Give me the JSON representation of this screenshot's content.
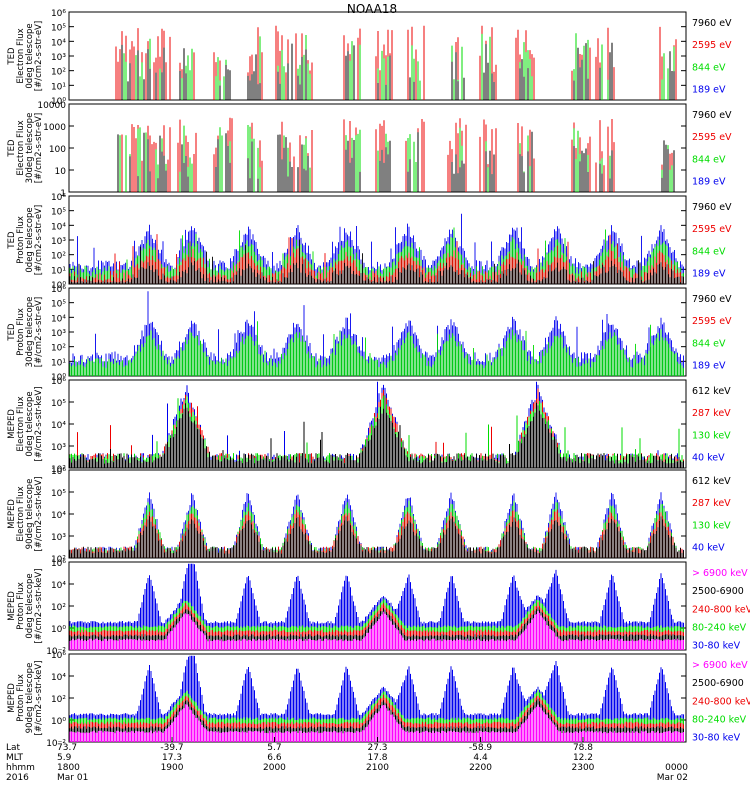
{
  "title": "NOAA18",
  "colors": {
    "blue": "#0000ee",
    "red": "#ee0000",
    "green": "#00dd00",
    "black": "#000000",
    "magenta": "#ff00ff",
    "axis": "#000000"
  },
  "chart_data": [
    {
      "type": "line",
      "ylabel": [
        "TED",
        "Electron Flux",
        "0deg telescope",
        "[#/cm2-s-str-eV]"
      ],
      "yticks": [
        "10⁰",
        "10¹",
        "10²",
        "10³",
        "10⁴",
        "10⁵",
        "10⁶"
      ],
      "ylim_log": [
        0,
        6
      ],
      "legend": [
        {
          "label": "7960 eV",
          "color": "black"
        },
        {
          "label": "2595 eV",
          "color": "red"
        },
        {
          "label": "844 eV",
          "color": "green"
        },
        {
          "label": "189 eV",
          "color": "blue"
        }
      ],
      "activity": "bursts",
      "active_series": [
        "red",
        "green",
        "black"
      ]
    },
    {
      "type": "line",
      "ylabel": [
        "TED",
        "Electron Flux",
        "30deg telescope",
        "[#/cm2-s-str-eV]"
      ],
      "yticks": [
        "1",
        "10",
        "100",
        "1000",
        "10000"
      ],
      "ylim_log": [
        0,
        4
      ],
      "legend": [
        {
          "label": "7960 eV",
          "color": "black"
        },
        {
          "label": "2595 eV",
          "color": "red"
        },
        {
          "label": "844 eV",
          "color": "green"
        },
        {
          "label": "189 eV",
          "color": "blue"
        }
      ],
      "activity": "bursts",
      "active_series": [
        "red",
        "green",
        "black"
      ]
    },
    {
      "type": "line",
      "ylabel": [
        "TED",
        "Proton Flux",
        "0deg telescope",
        "[#/cm2-s-str-eV]"
      ],
      "yticks": [
        "10⁰",
        "10¹",
        "10²",
        "10³",
        "10⁴",
        "10⁵",
        "10⁶"
      ],
      "ylim_log": [
        0,
        6
      ],
      "legend": [
        {
          "label": "7960 eV",
          "color": "black"
        },
        {
          "label": "2595 eV",
          "color": "red"
        },
        {
          "label": "844 eV",
          "color": "green"
        },
        {
          "label": "189 eV",
          "color": "blue"
        }
      ],
      "activity": "continuous",
      "active_series": [
        "blue",
        "green",
        "red",
        "black"
      ]
    },
    {
      "type": "line",
      "ylabel": [
        "TED",
        "Proton Flux",
        "30deg telescope",
        "[#/cm2-s-str-eV]"
      ],
      "yticks": [
        "10⁰",
        "10¹",
        "10²",
        "10³",
        "10⁴",
        "10⁵",
        "10⁶"
      ],
      "ylim_log": [
        0,
        6
      ],
      "legend": [
        {
          "label": "7960 eV",
          "color": "black"
        },
        {
          "label": "2595 eV",
          "color": "red"
        },
        {
          "label": "844 eV",
          "color": "green"
        },
        {
          "label": "189 eV",
          "color": "blue"
        }
      ],
      "activity": "continuous",
      "active_series": [
        "blue",
        "green"
      ]
    },
    {
      "type": "line",
      "ylabel": [
        "MEPED",
        "Electron Flux",
        "0deg telescope",
        "[#/cm2-s-str-keV]"
      ],
      "yticks": [
        "10²",
        "10³",
        "10⁴",
        "10⁵",
        "10⁶"
      ],
      "ylim_log": [
        2,
        6
      ],
      "legend": [
        {
          "label": "612 keV",
          "color": "black"
        },
        {
          "label": "287 keV",
          "color": "red"
        },
        {
          "label": "130 keV",
          "color": "green"
        },
        {
          "label": "40 keV",
          "color": "blue"
        }
      ],
      "activity": "baseline",
      "active_series": [
        "blue",
        "red",
        "green",
        "black"
      ]
    },
    {
      "type": "line",
      "ylabel": [
        "MEPED",
        "Electron Flux",
        "90deg telescope",
        "[#/cm2-s-str-keV]"
      ],
      "yticks": [
        "10²",
        "10³",
        "10⁴",
        "10⁵",
        "10⁶"
      ],
      "ylim_log": [
        2,
        6
      ],
      "legend": [
        {
          "label": "612 keV",
          "color": "black"
        },
        {
          "label": "287 keV",
          "color": "red"
        },
        {
          "label": "130 keV",
          "color": "green"
        },
        {
          "label": "40 keV",
          "color": "blue"
        }
      ],
      "activity": "humps",
      "active_series": [
        "blue",
        "green",
        "red",
        "black"
      ]
    },
    {
      "type": "line",
      "ylabel": [
        "MEPED",
        "Proton Flux",
        "0deg telescope",
        "[#/cm2-s-str-keV]"
      ],
      "yticks": [
        "10⁻²",
        "10⁰",
        "10²",
        "10⁴",
        "10⁶"
      ],
      "ylim_log": [
        -2,
        6
      ],
      "legend": [
        {
          "label": "> 6900 keV",
          "color": "magenta"
        },
        {
          "label": "2500-6900",
          "color": "black"
        },
        {
          "label": "240-800 keV",
          "color": "red"
        },
        {
          "label": "80-240 keV",
          "color": "green"
        },
        {
          "label": "30-80 keV",
          "color": "blue"
        }
      ],
      "activity": "proton",
      "active_series": [
        "blue",
        "green",
        "red",
        "black",
        "magenta"
      ]
    },
    {
      "type": "line",
      "ylabel": [
        "MEPED",
        "Proton Flux",
        "90deg telescope",
        "[#/cm2-s-str-keV]"
      ],
      "yticks": [
        "10⁻²",
        "10⁰",
        "10²",
        "10⁴",
        "10⁶"
      ],
      "ylim_log": [
        -2,
        6
      ],
      "legend": [
        {
          "label": "> 6900 keV",
          "color": "magenta"
        },
        {
          "label": "2500-6900",
          "color": "black"
        },
        {
          "label": "240-800 keV",
          "color": "red"
        },
        {
          "label": "80-240 keV",
          "color": "green"
        },
        {
          "label": "30-80 keV",
          "color": "blue"
        }
      ],
      "activity": "proton",
      "active_series": [
        "blue",
        "green",
        "red",
        "black",
        "magenta"
      ]
    }
  ],
  "xaxis": {
    "row_labels": [
      "Lat",
      "MLT",
      "hhmm",
      "2016"
    ],
    "columns": [
      {
        "frac": 0.0,
        "values": [
          "73.7",
          "5.9",
          "1800",
          "Mar 01"
        ]
      },
      {
        "frac": 0.167,
        "values": [
          "-39.7",
          "17.3",
          "1900",
          ""
        ]
      },
      {
        "frac": 0.333,
        "values": [
          "5.7",
          "6.6",
          "2000",
          ""
        ]
      },
      {
        "frac": 0.5,
        "values": [
          "27.3",
          "17.8",
          "2100",
          ""
        ]
      },
      {
        "frac": 0.667,
        "values": [
          "-58.9",
          "4.4",
          "2200",
          ""
        ]
      },
      {
        "frac": 0.833,
        "values": [
          "78.8",
          "12.2",
          "2300",
          ""
        ]
      },
      {
        "frac": 1.0,
        "values": [
          "",
          "",
          "0000",
          "Mar 02"
        ]
      }
    ]
  }
}
